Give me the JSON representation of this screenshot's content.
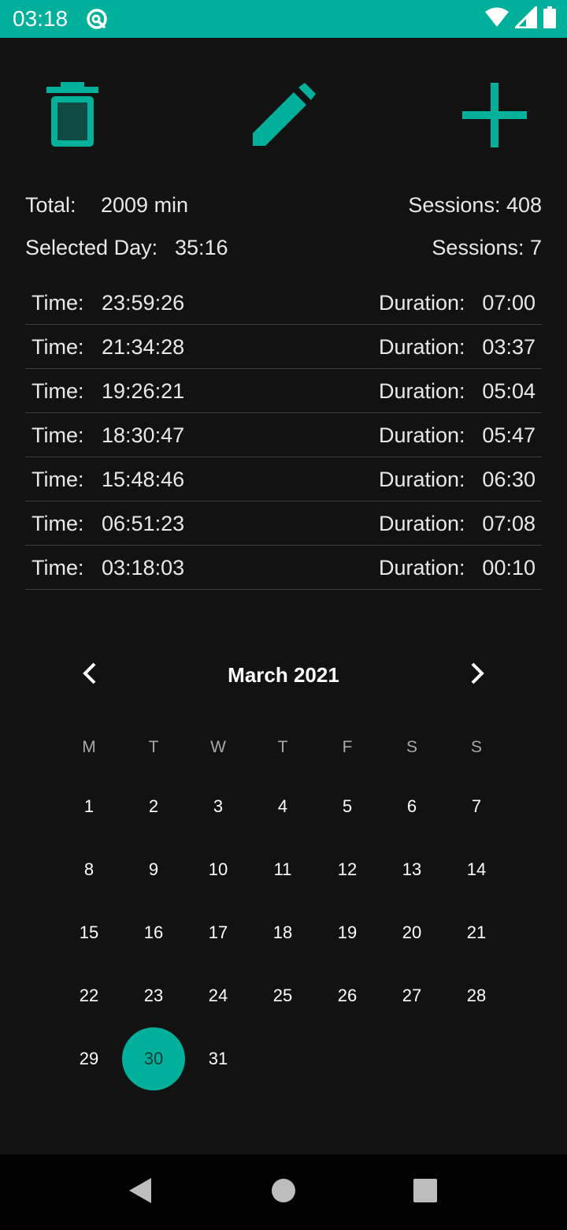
{
  "status_bar": {
    "time": "03:18",
    "app_icon": "vpn-key-icon",
    "icons": [
      "wifi-icon",
      "cellular-signal-icon",
      "battery-icon"
    ]
  },
  "toolbar": {
    "icons": [
      "trash-icon",
      "pencil-icon",
      "plus-icon"
    ],
    "accent_color": "#00b09b"
  },
  "summary": {
    "total_label": "Total:",
    "total_value": "2009 min",
    "total_sessions": "Sessions: 408",
    "day_label": "Selected Day:",
    "day_value": "35:16",
    "day_sessions": "Sessions: 7"
  },
  "sessions": [
    {
      "time_label": "Time:",
      "time": "23:59:26",
      "duration_label": "Duration:",
      "duration": "07:00"
    },
    {
      "time_label": "Time:",
      "time": "21:34:28",
      "duration_label": "Duration:",
      "duration": "03:37"
    },
    {
      "time_label": "Time:",
      "time": "19:26:21",
      "duration_label": "Duration:",
      "duration": "05:04"
    },
    {
      "time_label": "Time:",
      "time": "18:30:47",
      "duration_label": "Duration:",
      "duration": "05:47"
    },
    {
      "time_label": "Time:",
      "time": "15:48:46",
      "duration_label": "Duration:",
      "duration": "06:30"
    },
    {
      "time_label": "Time:",
      "time": "06:51:23",
      "duration_label": "Duration:",
      "duration": "07:08"
    },
    {
      "time_label": "Time:",
      "time": "03:18:03",
      "duration_label": "Duration:",
      "duration": "00:10"
    }
  ],
  "calendar": {
    "month_title": "March 2021",
    "prev_icon": "chevron-left-icon",
    "next_icon": "chevron-right-icon",
    "weekdays": [
      "M",
      "T",
      "W",
      "T",
      "F",
      "S",
      "S"
    ],
    "days": [
      "1",
      "2",
      "3",
      "4",
      "5",
      "6",
      "7",
      "8",
      "9",
      "10",
      "11",
      "12",
      "13",
      "14",
      "15",
      "16",
      "17",
      "18",
      "19",
      "20",
      "21",
      "22",
      "23",
      "24",
      "25",
      "26",
      "27",
      "28",
      "29",
      "30",
      "31"
    ],
    "selected_day": "30"
  },
  "nav_bar": {
    "icons": [
      "back-icon",
      "home-icon",
      "recents-icon"
    ]
  }
}
